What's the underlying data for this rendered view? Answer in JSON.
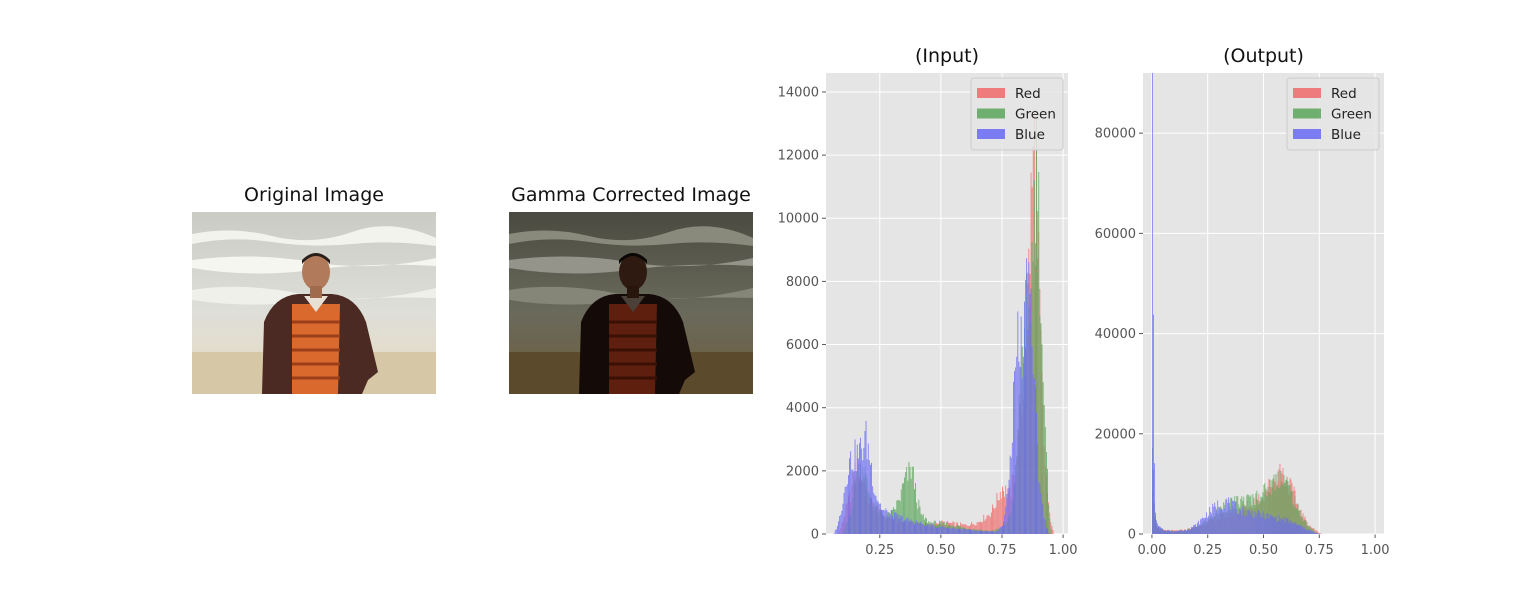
{
  "images": [
    {
      "title": "Original Image",
      "variant": "original"
    },
    {
      "title": "Gamma Corrected Image",
      "variant": "dark"
    }
  ],
  "colors": {
    "Red": "#f06a6a",
    "Green": "#5aa65a",
    "Blue": "#6a6af5",
    "plot_bg": "#e5e5e5",
    "grid": "#ffffff"
  },
  "chart_data": [
    {
      "type": "bar",
      "title": "(Input)",
      "xlabel": "",
      "ylabel": "",
      "xlim": [
        0.03,
        1.02
      ],
      "ylim": [
        0,
        14600
      ],
      "xticks": [
        0.25,
        0.5,
        0.75,
        1.0
      ],
      "xtick_labels": [
        "0.25",
        "0.50",
        "0.75",
        "1.00"
      ],
      "yticks": [
        0,
        2000,
        4000,
        6000,
        8000,
        10000,
        12000,
        14000
      ],
      "grid": true,
      "legend": {
        "placement": "top-right",
        "entries": [
          "Red",
          "Green",
          "Blue"
        ]
      },
      "series": [
        {
          "name": "Red",
          "points": [
            [
              0.08,
              0
            ],
            [
              0.1,
              500
            ],
            [
              0.13,
              1400
            ],
            [
              0.15,
              2300
            ],
            [
              0.18,
              1800
            ],
            [
              0.2,
              1200
            ],
            [
              0.25,
              700
            ],
            [
              0.3,
              500
            ],
            [
              0.35,
              400
            ],
            [
              0.4,
              350
            ],
            [
              0.45,
              300
            ],
            [
              0.5,
              400
            ],
            [
              0.55,
              350
            ],
            [
              0.6,
              300
            ],
            [
              0.65,
              400
            ],
            [
              0.7,
              700
            ],
            [
              0.72,
              1000
            ],
            [
              0.75,
              1600
            ],
            [
              0.78,
              1300
            ],
            [
              0.8,
              2000
            ],
            [
              0.82,
              3500
            ],
            [
              0.84,
              5000
            ],
            [
              0.86,
              9500
            ],
            [
              0.87,
              11500
            ],
            [
              0.88,
              13200
            ],
            [
              0.89,
              12000
            ],
            [
              0.9,
              8000
            ],
            [
              0.92,
              3000
            ],
            [
              0.94,
              800
            ],
            [
              0.96,
              0
            ]
          ]
        },
        {
          "name": "Green",
          "points": [
            [
              0.1,
              0
            ],
            [
              0.13,
              800
            ],
            [
              0.15,
              2000
            ],
            [
              0.18,
              2400
            ],
            [
              0.2,
              1500
            ],
            [
              0.23,
              900
            ],
            [
              0.27,
              600
            ],
            [
              0.3,
              700
            ],
            [
              0.33,
              1200
            ],
            [
              0.35,
              1800
            ],
            [
              0.37,
              2100
            ],
            [
              0.38,
              2250
            ],
            [
              0.4,
              1200
            ],
            [
              0.42,
              600
            ],
            [
              0.45,
              400
            ],
            [
              0.5,
              350
            ],
            [
              0.55,
              300
            ],
            [
              0.6,
              200
            ],
            [
              0.65,
              150
            ],
            [
              0.7,
              100
            ],
            [
              0.75,
              200
            ],
            [
              0.78,
              600
            ],
            [
              0.8,
              1500
            ],
            [
              0.82,
              4500
            ],
            [
              0.84,
              7500
            ],
            [
              0.86,
              7000
            ],
            [
              0.88,
              11000
            ],
            [
              0.89,
              12500
            ],
            [
              0.9,
              10500
            ],
            [
              0.92,
              4000
            ],
            [
              0.94,
              1000
            ],
            [
              0.95,
              0
            ]
          ]
        },
        {
          "name": "Blue",
          "points": [
            [
              0.06,
              0
            ],
            [
              0.08,
              400
            ],
            [
              0.1,
              1300
            ],
            [
              0.12,
              2400
            ],
            [
              0.14,
              2600
            ],
            [
              0.16,
              2700
            ],
            [
              0.18,
              3000
            ],
            [
              0.19,
              3300
            ],
            [
              0.21,
              2500
            ],
            [
              0.23,
              1400
            ],
            [
              0.26,
              800
            ],
            [
              0.3,
              650
            ],
            [
              0.35,
              500
            ],
            [
              0.4,
              400
            ],
            [
              0.45,
              300
            ],
            [
              0.5,
              250
            ],
            [
              0.55,
              200
            ],
            [
              0.6,
              150
            ],
            [
              0.65,
              100
            ],
            [
              0.7,
              80
            ],
            [
              0.73,
              100
            ],
            [
              0.75,
              300
            ],
            [
              0.77,
              1200
            ],
            [
              0.79,
              3500
            ],
            [
              0.8,
              5500
            ],
            [
              0.81,
              6700
            ],
            [
              0.82,
              6000
            ],
            [
              0.84,
              7000
            ],
            [
              0.85,
              9000
            ],
            [
              0.86,
              8800
            ],
            [
              0.87,
              7000
            ],
            [
              0.88,
              5000
            ],
            [
              0.9,
              2000
            ],
            [
              0.92,
              600
            ],
            [
              0.94,
              0
            ]
          ]
        }
      ]
    },
    {
      "type": "bar",
      "title": "(Output)",
      "xlabel": "",
      "ylabel": "",
      "xlim": [
        -0.04,
        1.04
      ],
      "ylim": [
        0,
        92000
      ],
      "xticks": [
        0.0,
        0.25,
        0.5,
        0.75,
        1.0
      ],
      "xtick_labels": [
        "0.00",
        "0.25",
        "0.50",
        "0.75",
        "1.00"
      ],
      "yticks": [
        0,
        20000,
        40000,
        60000,
        80000
      ],
      "grid": true,
      "legend": {
        "placement": "top-right",
        "entries": [
          "Red",
          "Green",
          "Blue"
        ]
      },
      "series": [
        {
          "name": "Red",
          "points": [
            [
              0.0,
              8000
            ],
            [
              0.01,
              3000
            ],
            [
              0.02,
              1500
            ],
            [
              0.05,
              800
            ],
            [
              0.1,
              700
            ],
            [
              0.15,
              900
            ],
            [
              0.2,
              1500
            ],
            [
              0.25,
              2500
            ],
            [
              0.3,
              3500
            ],
            [
              0.35,
              4500
            ],
            [
              0.4,
              5500
            ],
            [
              0.45,
              6500
            ],
            [
              0.5,
              8500
            ],
            [
              0.55,
              12000
            ],
            [
              0.57,
              13500
            ],
            [
              0.6,
              12000
            ],
            [
              0.63,
              9000
            ],
            [
              0.66,
              5000
            ],
            [
              0.7,
              2000
            ],
            [
              0.74,
              500
            ],
            [
              0.76,
              0
            ]
          ]
        },
        {
          "name": "Green",
          "points": [
            [
              0.0,
              20000
            ],
            [
              0.01,
              5000
            ],
            [
              0.02,
              1500
            ],
            [
              0.05,
              700
            ],
            [
              0.1,
              600
            ],
            [
              0.15,
              800
            ],
            [
              0.2,
              1500
            ],
            [
              0.25,
              3000
            ],
            [
              0.3,
              5000
            ],
            [
              0.35,
              6500
            ],
            [
              0.4,
              7000
            ],
            [
              0.45,
              7500
            ],
            [
              0.5,
              9000
            ],
            [
              0.55,
              11500
            ],
            [
              0.58,
              13000
            ],
            [
              0.6,
              11000
            ],
            [
              0.63,
              8000
            ],
            [
              0.66,
              4500
            ],
            [
              0.7,
              1800
            ],
            [
              0.73,
              400
            ],
            [
              0.75,
              0
            ]
          ]
        },
        {
          "name": "Blue",
          "points": [
            [
              0.0,
              88000
            ],
            [
              0.005,
              56000
            ],
            [
              0.01,
              8000
            ],
            [
              0.02,
              2000
            ],
            [
              0.05,
              800
            ],
            [
              0.1,
              600
            ],
            [
              0.15,
              800
            ],
            [
              0.2,
              2000
            ],
            [
              0.25,
              4500
            ],
            [
              0.3,
              6500
            ],
            [
              0.33,
              7000
            ],
            [
              0.36,
              6000
            ],
            [
              0.4,
              5000
            ],
            [
              0.45,
              4500
            ],
            [
              0.5,
              4000
            ],
            [
              0.55,
              3500
            ],
            [
              0.6,
              3000
            ],
            [
              0.65,
              2000
            ],
            [
              0.7,
              900
            ],
            [
              0.73,
              300
            ],
            [
              0.75,
              0
            ]
          ]
        }
      ]
    }
  ]
}
